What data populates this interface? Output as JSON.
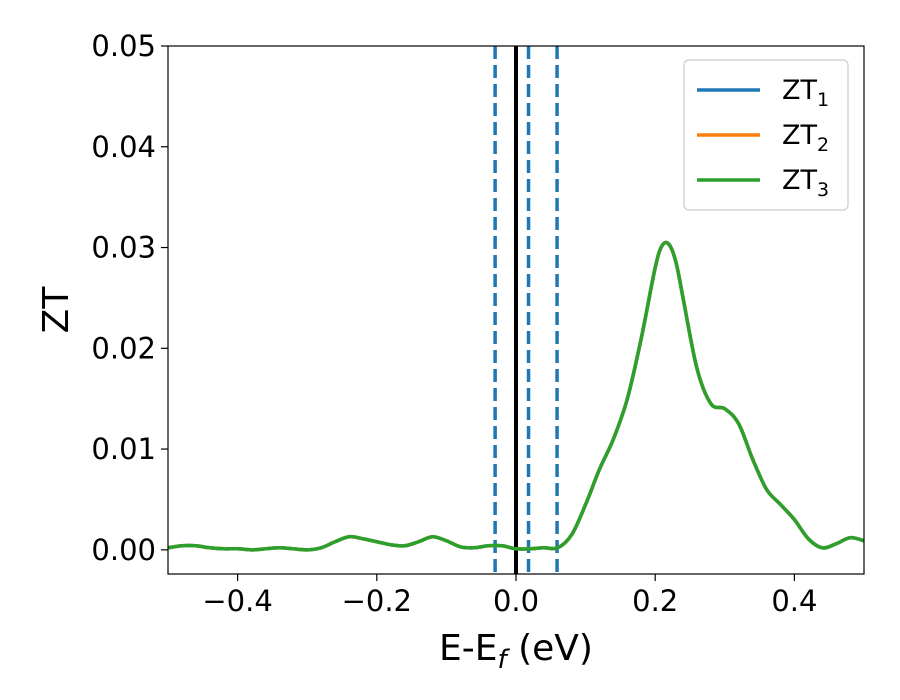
{
  "chart_data": {
    "type": "line",
    "title": "",
    "xlabel": {
      "main": "E-E",
      "sub": "f",
      "unit": " (eV)"
    },
    "ylabel": "ZT",
    "xlim": [
      -0.5,
      0.5
    ],
    "ylim": [
      -0.0024,
      0.05
    ],
    "xticks": [
      -0.4,
      -0.2,
      0.0,
      0.2,
      0.4
    ],
    "xtick_labels": [
      "−0.4",
      "−0.2",
      "0.0",
      "0.2",
      "0.4"
    ],
    "yticks": [
      0.0,
      0.01,
      0.02,
      0.03,
      0.04,
      0.05
    ],
    "ytick_labels": [
      "0.00",
      "0.01",
      "0.02",
      "0.03",
      "0.04",
      "0.05"
    ],
    "grid": false,
    "legend_position": "top-right",
    "vertical_lines": [
      {
        "x": 0.0,
        "style": "solid",
        "color": "#000000"
      },
      {
        "x": -0.03,
        "style": "dashed",
        "color": "#1f77b4"
      },
      {
        "x": 0.018,
        "style": "dashed",
        "color": "#1f77b4"
      },
      {
        "x": 0.059,
        "style": "dashed",
        "color": "#1f77b4"
      }
    ],
    "x": [
      -0.5,
      -0.48,
      -0.46,
      -0.44,
      -0.42,
      -0.4,
      -0.38,
      -0.36,
      -0.34,
      -0.32,
      -0.3,
      -0.28,
      -0.26,
      -0.24,
      -0.22,
      -0.2,
      -0.18,
      -0.16,
      -0.14,
      -0.12,
      -0.1,
      -0.08,
      -0.06,
      -0.04,
      -0.02,
      0.0,
      0.02,
      0.04,
      0.06,
      0.08,
      0.1,
      0.12,
      0.14,
      0.16,
      0.18,
      0.2,
      0.21,
      0.22,
      0.23,
      0.24,
      0.26,
      0.28,
      0.3,
      0.32,
      0.34,
      0.36,
      0.38,
      0.4,
      0.42,
      0.44,
      0.46,
      0.48,
      0.5
    ],
    "series": [
      {
        "name": "ZT",
        "sub": "1",
        "color": "#1f77b4",
        "values": [
          0.0002,
          0.0004,
          0.0004,
          0.0002,
          0.0001,
          0.0001,
          0.0,
          0.0001,
          0.0002,
          0.0001,
          0.0,
          0.0002,
          0.0008,
          0.0013,
          0.0011,
          0.0008,
          0.0005,
          0.0004,
          0.0008,
          0.0013,
          0.0009,
          0.0003,
          0.0002,
          0.0004,
          0.0004,
          0.0001,
          0.0001,
          0.0002,
          0.0002,
          0.0015,
          0.0045,
          0.008,
          0.011,
          0.015,
          0.021,
          0.028,
          0.0302,
          0.0303,
          0.0285,
          0.025,
          0.018,
          0.0145,
          0.014,
          0.0125,
          0.009,
          0.006,
          0.0045,
          0.003,
          0.0011,
          0.0002,
          0.0006,
          0.0012,
          0.0009
        ]
      },
      {
        "name": "ZT",
        "sub": "2",
        "color": "#ff7f0e",
        "values": [
          0.0002,
          0.0004,
          0.0004,
          0.0002,
          0.0001,
          0.0001,
          0.0,
          0.0001,
          0.0002,
          0.0001,
          0.0,
          0.0002,
          0.0008,
          0.0013,
          0.0011,
          0.0008,
          0.0005,
          0.0004,
          0.0008,
          0.0013,
          0.0009,
          0.0003,
          0.0002,
          0.0004,
          0.0004,
          0.0001,
          0.0001,
          0.0002,
          0.0002,
          0.0015,
          0.0045,
          0.008,
          0.011,
          0.015,
          0.021,
          0.028,
          0.0302,
          0.0303,
          0.0285,
          0.025,
          0.018,
          0.0145,
          0.014,
          0.0125,
          0.009,
          0.006,
          0.0045,
          0.003,
          0.0011,
          0.0002,
          0.0006,
          0.0012,
          0.0009
        ]
      },
      {
        "name": "ZT",
        "sub": "3",
        "color": "#2ca02c",
        "values": [
          0.0002,
          0.0004,
          0.0004,
          0.0002,
          0.0001,
          0.0001,
          0.0,
          0.0001,
          0.0002,
          0.0001,
          0.0,
          0.0002,
          0.0008,
          0.0013,
          0.0011,
          0.0008,
          0.0005,
          0.0004,
          0.0008,
          0.0013,
          0.0009,
          0.0003,
          0.0002,
          0.0004,
          0.0004,
          0.0001,
          0.0001,
          0.0002,
          0.0002,
          0.0015,
          0.0045,
          0.008,
          0.011,
          0.015,
          0.021,
          0.028,
          0.0302,
          0.0303,
          0.0285,
          0.025,
          0.018,
          0.0145,
          0.014,
          0.0125,
          0.009,
          0.006,
          0.0045,
          0.003,
          0.0011,
          0.0002,
          0.0006,
          0.0012,
          0.0009
        ]
      }
    ]
  }
}
